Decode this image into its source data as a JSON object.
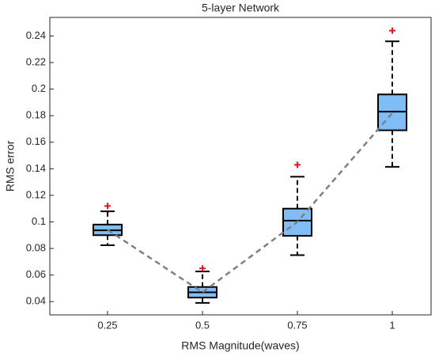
{
  "chart_data": {
    "type": "box",
    "title": "5-layer Network",
    "x_label": "RMS Magnitude(waves)",
    "y_label": "RMS error",
    "categories": [
      "0.25",
      "0.5",
      "0.75",
      "1"
    ],
    "boxes": [
      {
        "whisker_low": 0.0824,
        "q1": 0.09,
        "median": 0.0937,
        "q3": 0.098,
        "whisker_high": 0.108,
        "outliers": [
          0.112
        ]
      },
      {
        "whisker_low": 0.039,
        "q1": 0.043,
        "median": 0.047,
        "q3": 0.051,
        "whisker_high": 0.0627,
        "outliers": [
          0.065
        ]
      },
      {
        "whisker_low": 0.075,
        "q1": 0.0895,
        "median": 0.101,
        "q3": 0.11,
        "whisker_high": 0.134,
        "outliers": [
          0.143
        ]
      },
      {
        "whisker_low": 0.1415,
        "q1": 0.169,
        "median": 0.183,
        "q3": 0.196,
        "whisker_high": 0.236,
        "outliers": [
          0.244
        ]
      }
    ],
    "trend": {
      "color": "#808080",
      "values": [
        0.094,
        0.047,
        0.1,
        0.182
      ]
    },
    "box_color": "#80bdf7",
    "outlier_color": "#e8141a",
    "ylim": [
      0.03,
      0.254
    ],
    "yticks": [
      0.04,
      0.06,
      0.08,
      0.1,
      0.12,
      0.14,
      0.16,
      0.18,
      0.2,
      0.22,
      0.24
    ]
  }
}
